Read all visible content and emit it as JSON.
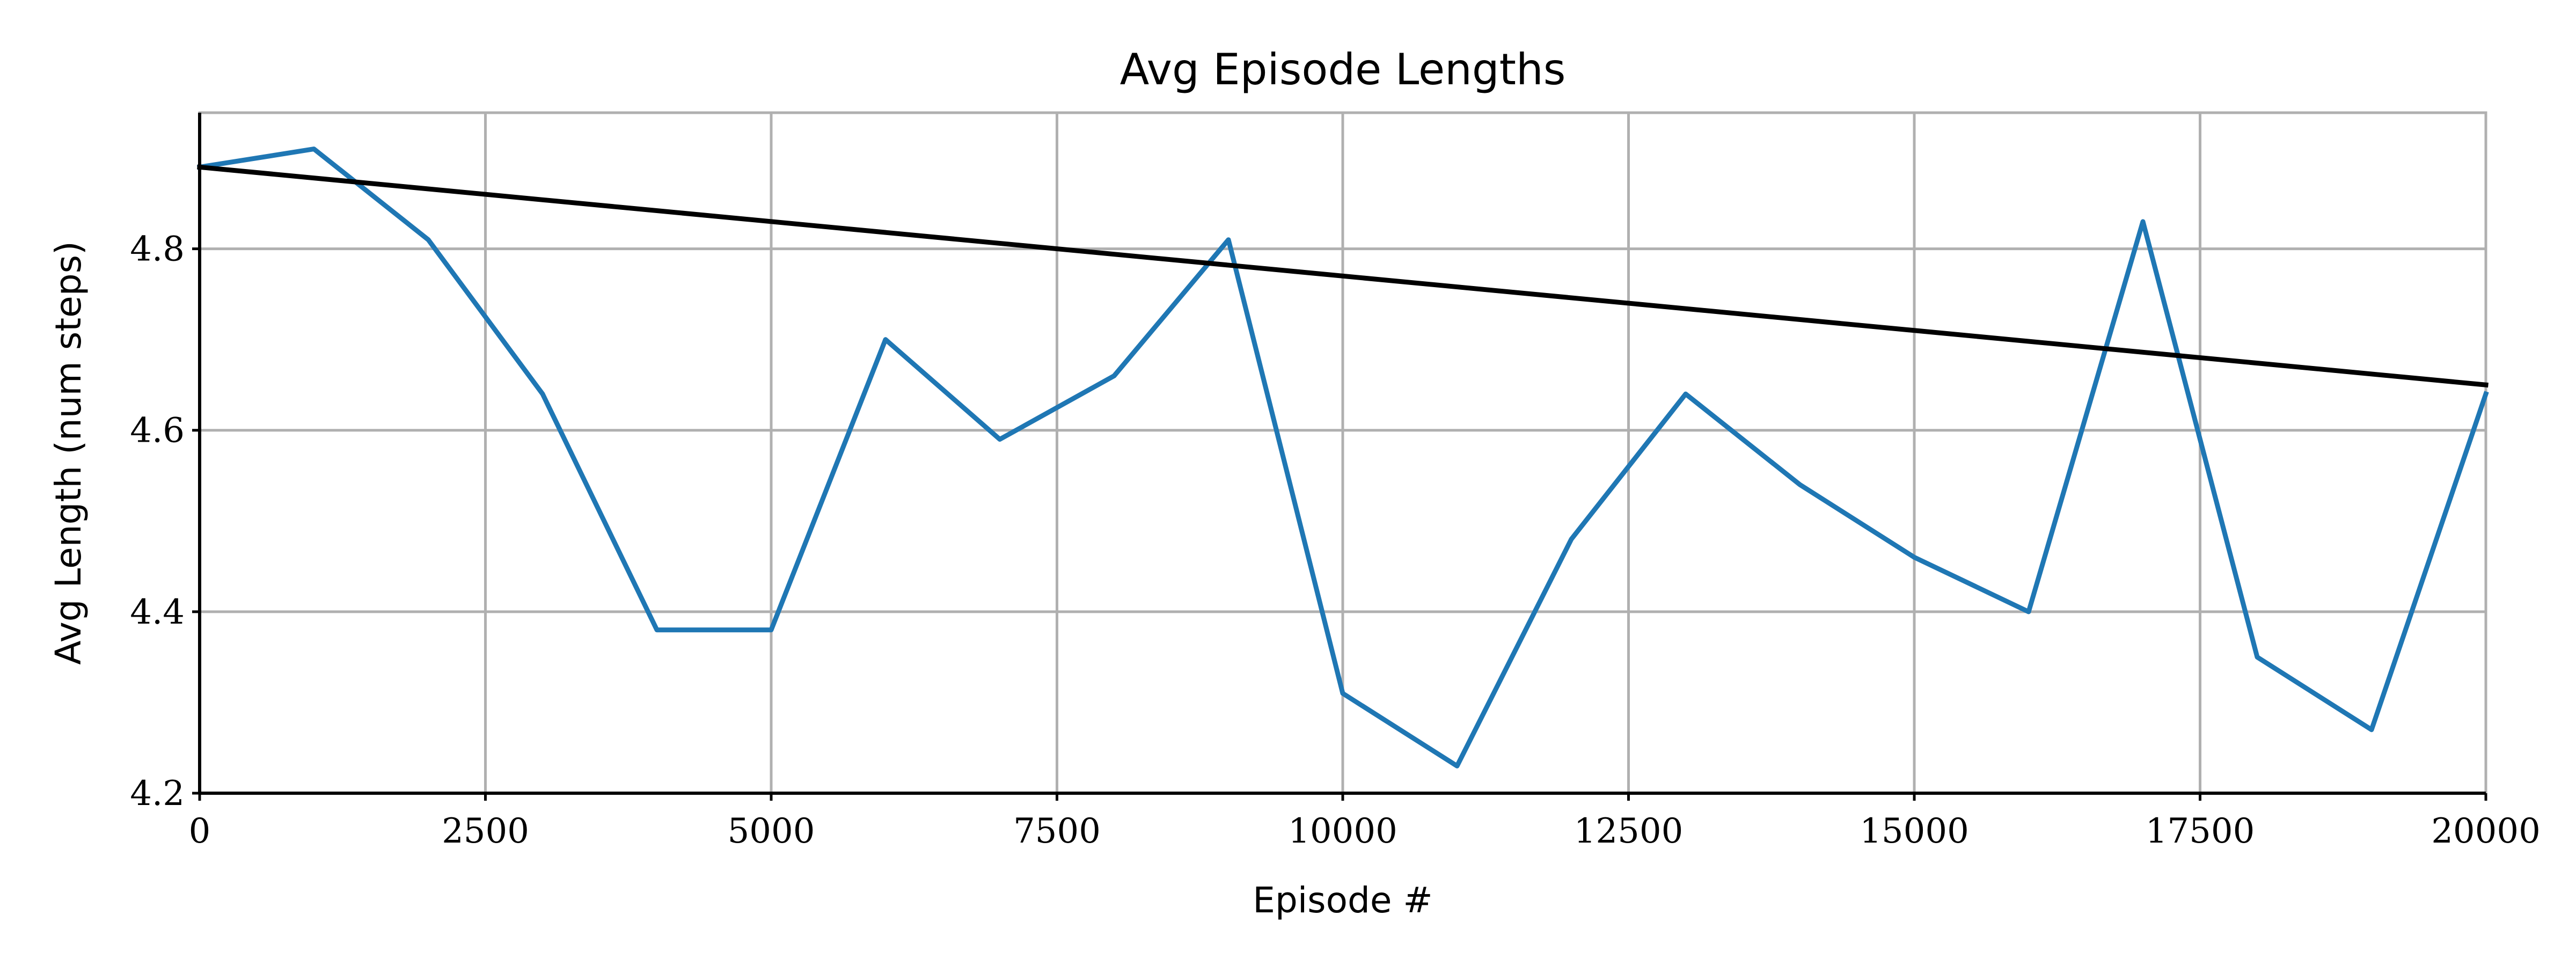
{
  "colors": {
    "series": "#1f77b4",
    "trend": "#000000",
    "grid": "#b0b0b0",
    "axis": "#000000",
    "background": "#ffffff"
  },
  "chart_data": {
    "type": "line",
    "title": "Avg Episode Lengths",
    "xlabel": "Episode #",
    "ylabel": "Avg Length (num steps)",
    "xlim": [
      0,
      20000
    ],
    "ylim": [
      4.2,
      4.95
    ],
    "grid": true,
    "xticks": [
      {
        "value": 0,
        "label": "0"
      },
      {
        "value": 2500,
        "label": "2500"
      },
      {
        "value": 5000,
        "label": "5000"
      },
      {
        "value": 7500,
        "label": "7500"
      },
      {
        "value": 10000,
        "label": "10000"
      },
      {
        "value": 12500,
        "label": "12500"
      },
      {
        "value": 15000,
        "label": "15000"
      },
      {
        "value": 17500,
        "label": "17500"
      },
      {
        "value": 20000,
        "label": "20000"
      }
    ],
    "yticks": [
      {
        "value": 4.2,
        "label": "4.2"
      },
      {
        "value": 4.4,
        "label": "4.4"
      },
      {
        "value": 4.6,
        "label": "4.6"
      },
      {
        "value": 4.8,
        "label": "4.8"
      }
    ],
    "series": [
      {
        "x": [
          0,
          1000,
          2000,
          3000,
          4000,
          5000,
          6000,
          7000,
          8000,
          9000,
          10000,
          11000,
          12000,
          13000,
          14000,
          15000,
          16000,
          17000,
          18000,
          19000,
          20000
        ],
        "y": [
          4.89,
          4.91,
          4.81,
          4.64,
          4.38,
          4.38,
          4.7,
          4.59,
          4.66,
          4.81,
          4.31,
          4.23,
          4.48,
          4.64,
          4.54,
          4.46,
          4.4,
          4.83,
          4.35,
          4.27,
          4.64
        ]
      },
      {
        "x": [
          0,
          20000
        ],
        "y": [
          4.89,
          4.65
        ]
      }
    ]
  }
}
